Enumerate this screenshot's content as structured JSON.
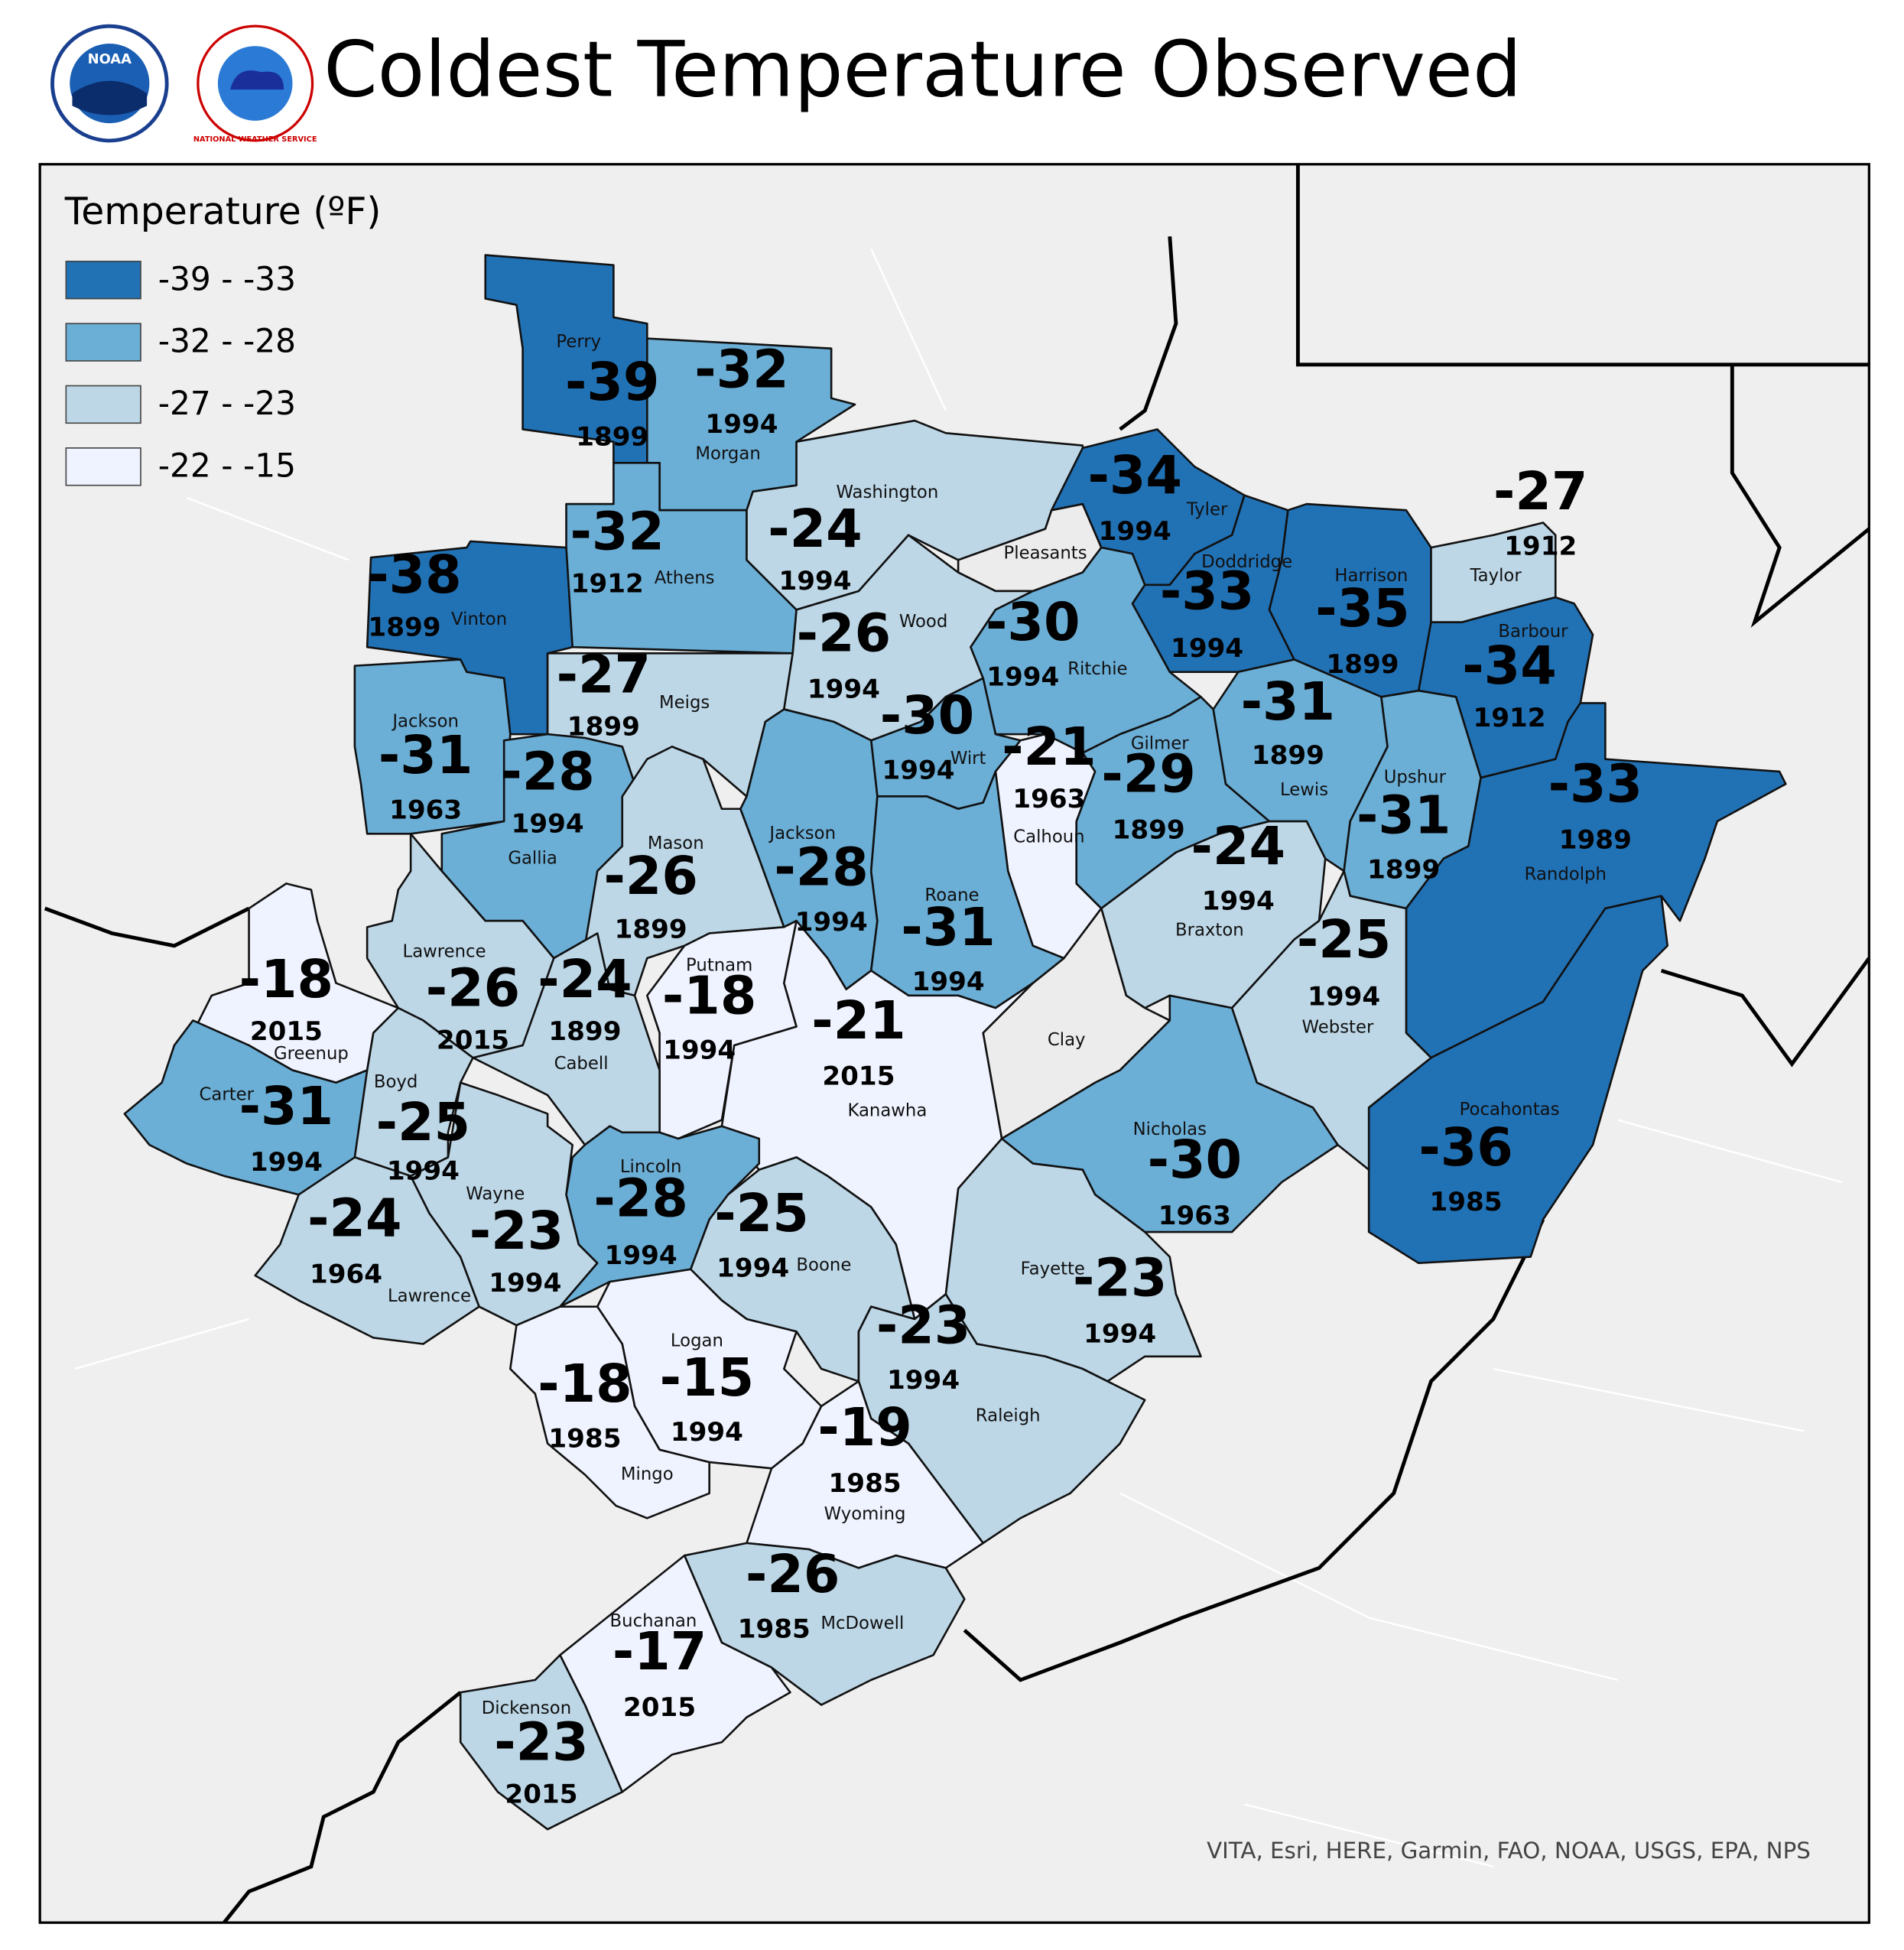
{
  "header": {
    "title": "Coldest Temperature Observed",
    "logos": [
      "NOAA",
      "NATIONAL WEATHER SERVICE"
    ]
  },
  "legend": {
    "title": "Temperature (ºF)",
    "items": [
      {
        "label": "-39 - -33",
        "min": -39,
        "max": -33,
        "color": "#2171b5"
      },
      {
        "label": "-32 - -28",
        "min": -32,
        "max": -28,
        "color": "#6baed6"
      },
      {
        "label": "-27 - -23",
        "min": -27,
        "max": -23,
        "color": "#bdd7e7"
      },
      {
        "label": "-22 - -15",
        "min": -22,
        "max": -15,
        "color": "#eff3ff"
      }
    ]
  },
  "counties": [
    {
      "name": "Perry",
      "temp": -39,
      "year": 1899
    },
    {
      "name": "Morgan",
      "temp": -32,
      "year": 1994
    },
    {
      "name": "Athens",
      "temp": -32,
      "year": 1912
    },
    {
      "name": "Vinton",
      "temp": -38,
      "year": 1899
    },
    {
      "name": "Washington",
      "temp": -24,
      "year": 1994
    },
    {
      "name": "Meigs",
      "temp": -27,
      "year": 1899
    },
    {
      "name": "Jackson",
      "temp": -31,
      "year": 1963
    },
    {
      "name": "Gallia",
      "temp": -28,
      "year": 1994
    },
    {
      "name": "Pleasants",
      "temp": null,
      "year": null
    },
    {
      "name": "Tyler",
      "temp": -34,
      "year": 1994
    },
    {
      "name": "Doddridge",
      "temp": -33,
      "year": 1994
    },
    {
      "name": "Harrison",
      "temp": -35,
      "year": 1899
    },
    {
      "name": "Taylor",
      "temp": -27,
      "year": 1912
    },
    {
      "name": "Barbour",
      "temp": -34,
      "year": 1912
    },
    {
      "name": "Wood",
      "temp": -26,
      "year": 1994
    },
    {
      "name": "Ritchie",
      "temp": -30,
      "year": 1994
    },
    {
      "name": "Wirt",
      "temp": -30,
      "year": 1994
    },
    {
      "name": "Calhoun",
      "temp": -21,
      "year": 1963
    },
    {
      "name": "Gilmer",
      "temp": -29,
      "year": 1899
    },
    {
      "name": "Lewis",
      "temp": -31,
      "year": 1899
    },
    {
      "name": "Upshur",
      "temp": -31,
      "year": 1899
    },
    {
      "name": "Randolph",
      "temp": -33,
      "year": 1989
    },
    {
      "name": "Pocahontas",
      "temp": -36,
      "year": 1985
    },
    {
      "name": "Braxton",
      "temp": -24,
      "year": 1994
    },
    {
      "name": "Webster",
      "temp": -25,
      "year": 1994
    },
    {
      "name": "Clay",
      "temp": null,
      "year": null
    },
    {
      "name": "Nicholas",
      "temp": -30,
      "year": 1963
    },
    {
      "name": "Fayette",
      "temp": -23,
      "year": 1994
    },
    {
      "name": "Mason",
      "temp": -26,
      "year": 1899
    },
    {
      "name": "Jackson",
      "temp": -28,
      "year": 1994
    },
    {
      "name": "Roane",
      "temp": -31,
      "year": 1994
    },
    {
      "name": "Putnam",
      "temp": -18,
      "year": 1994
    },
    {
      "name": "Kanawha",
      "temp": -21,
      "year": 2015
    },
    {
      "name": "Cabell",
      "temp": -24,
      "year": 1899
    },
    {
      "name": "Lawrence",
      "temp": -26,
      "year": 2015
    },
    {
      "name": "Greenup",
      "temp": -18,
      "year": 2015
    },
    {
      "name": "Boyd",
      "temp": -25,
      "year": 1994
    },
    {
      "name": "Carter",
      "temp": -31,
      "year": 1994
    },
    {
      "name": "Lawrence",
      "temp": -24,
      "year": 1964
    },
    {
      "name": "Wayne",
      "temp": -23,
      "year": 1994
    },
    {
      "name": "Lincoln",
      "temp": -28,
      "year": 1994
    },
    {
      "name": "Boone",
      "temp": -25,
      "year": 1994
    },
    {
      "name": "Logan",
      "temp": -15,
      "year": 1994
    },
    {
      "name": "Mingo",
      "temp": -18,
      "year": 1985
    },
    {
      "name": "Raleigh",
      "temp": -23,
      "year": 1994
    },
    {
      "name": "Wyoming",
      "temp": -19,
      "year": 1985
    },
    {
      "name": "McDowell",
      "temp": -26,
      "year": 1985
    },
    {
      "name": "Buchanan",
      "temp": -17,
      "year": 2015
    },
    {
      "name": "Dickenson",
      "temp": -23,
      "year": 2015
    }
  ],
  "credit": "VITA, Esri, HERE, Garmin, FAO, NOAA, USGS, EPA, NPS"
}
